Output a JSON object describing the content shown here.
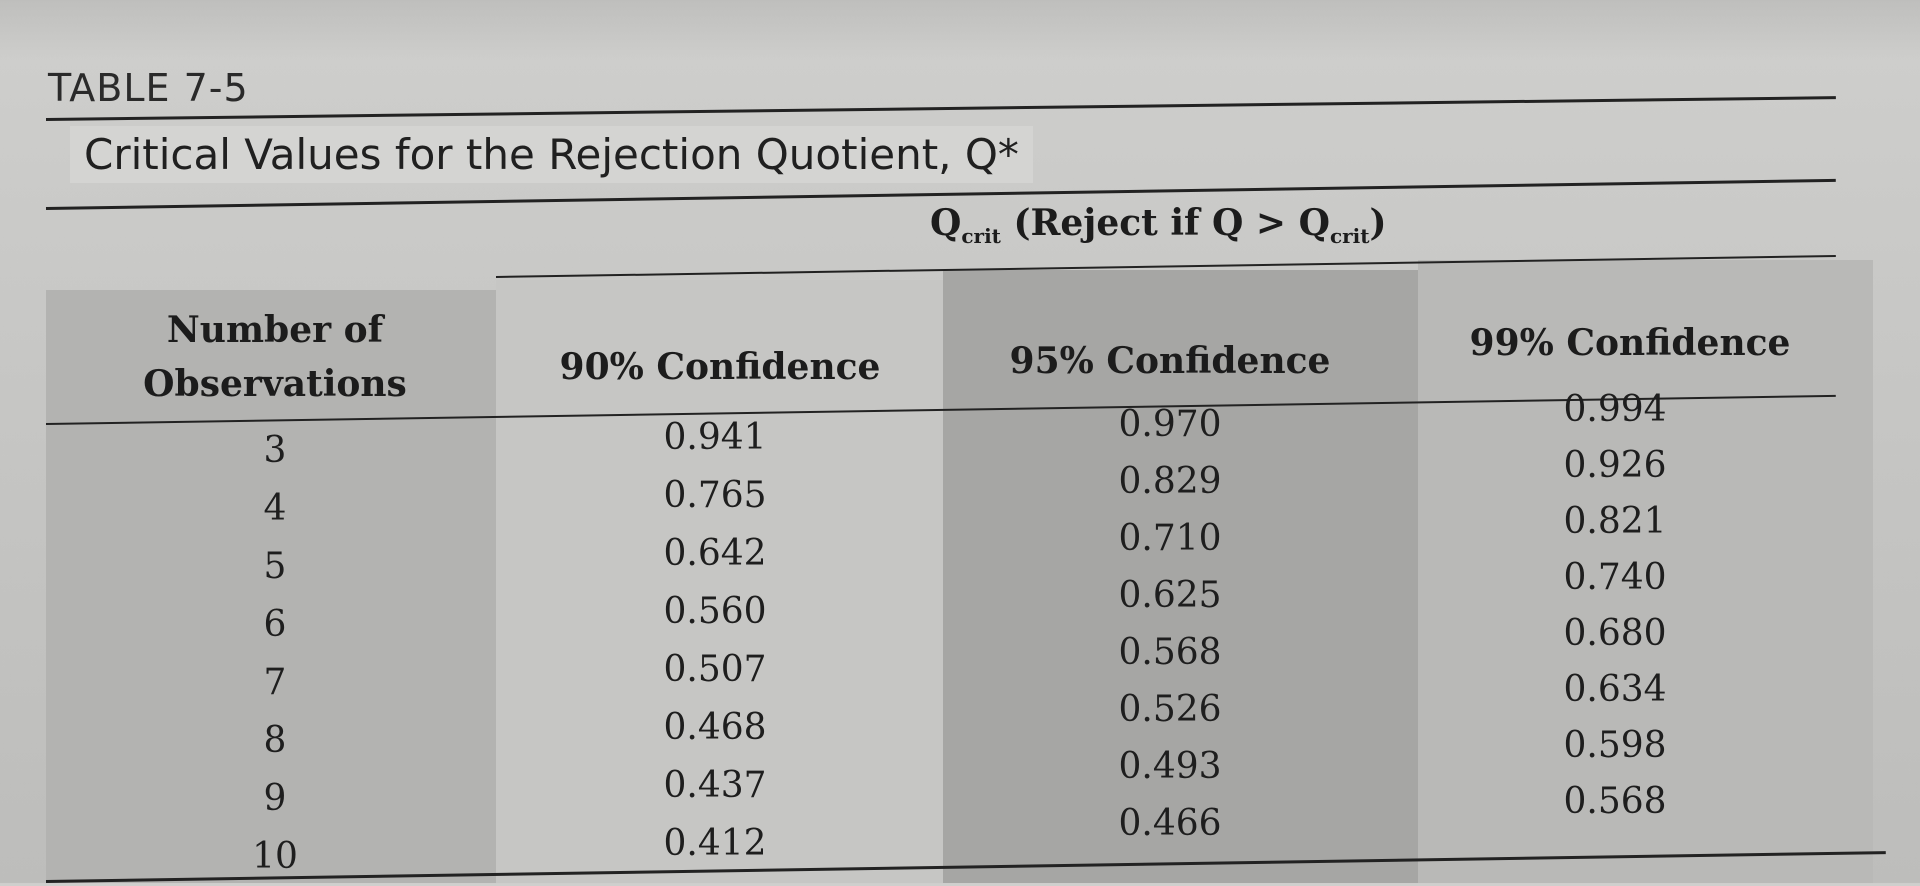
{
  "table": {
    "label": "TABLE 7-5",
    "title": "Critical Values for the Rejection Quotient, Q*",
    "group_header": {
      "q": "Q",
      "q_sub": "crit",
      "text": " (Reject if Q > ",
      "q2": "Q",
      "q2_sub": "crit",
      "close": ")"
    },
    "headers": {
      "observations": "Number of Observations",
      "c90": "90% Confidence",
      "c95": "95% Confidence",
      "c99": "99% Confidence"
    },
    "rows": [
      {
        "n": "3",
        "c90": "0.941",
        "c95": "0.970",
        "c99": "0.994"
      },
      {
        "n": "4",
        "c90": "0.765",
        "c95": "0.829",
        "c99": "0.926"
      },
      {
        "n": "5",
        "c90": "0.642",
        "c95": "0.710",
        "c99": "0.821"
      },
      {
        "n": "6",
        "c90": "0.560",
        "c95": "0.625",
        "c99": "0.740"
      },
      {
        "n": "7",
        "c90": "0.507",
        "c95": "0.568",
        "c99": "0.680"
      },
      {
        "n": "8",
        "c90": "0.468",
        "c95": "0.526",
        "c99": "0.634"
      },
      {
        "n": "9",
        "c90": "0.437",
        "c95": "0.493",
        "c99": "0.598"
      },
      {
        "n": "10",
        "c90": "0.412",
        "c95": "0.466",
        "c99": "0.568"
      }
    ]
  }
}
